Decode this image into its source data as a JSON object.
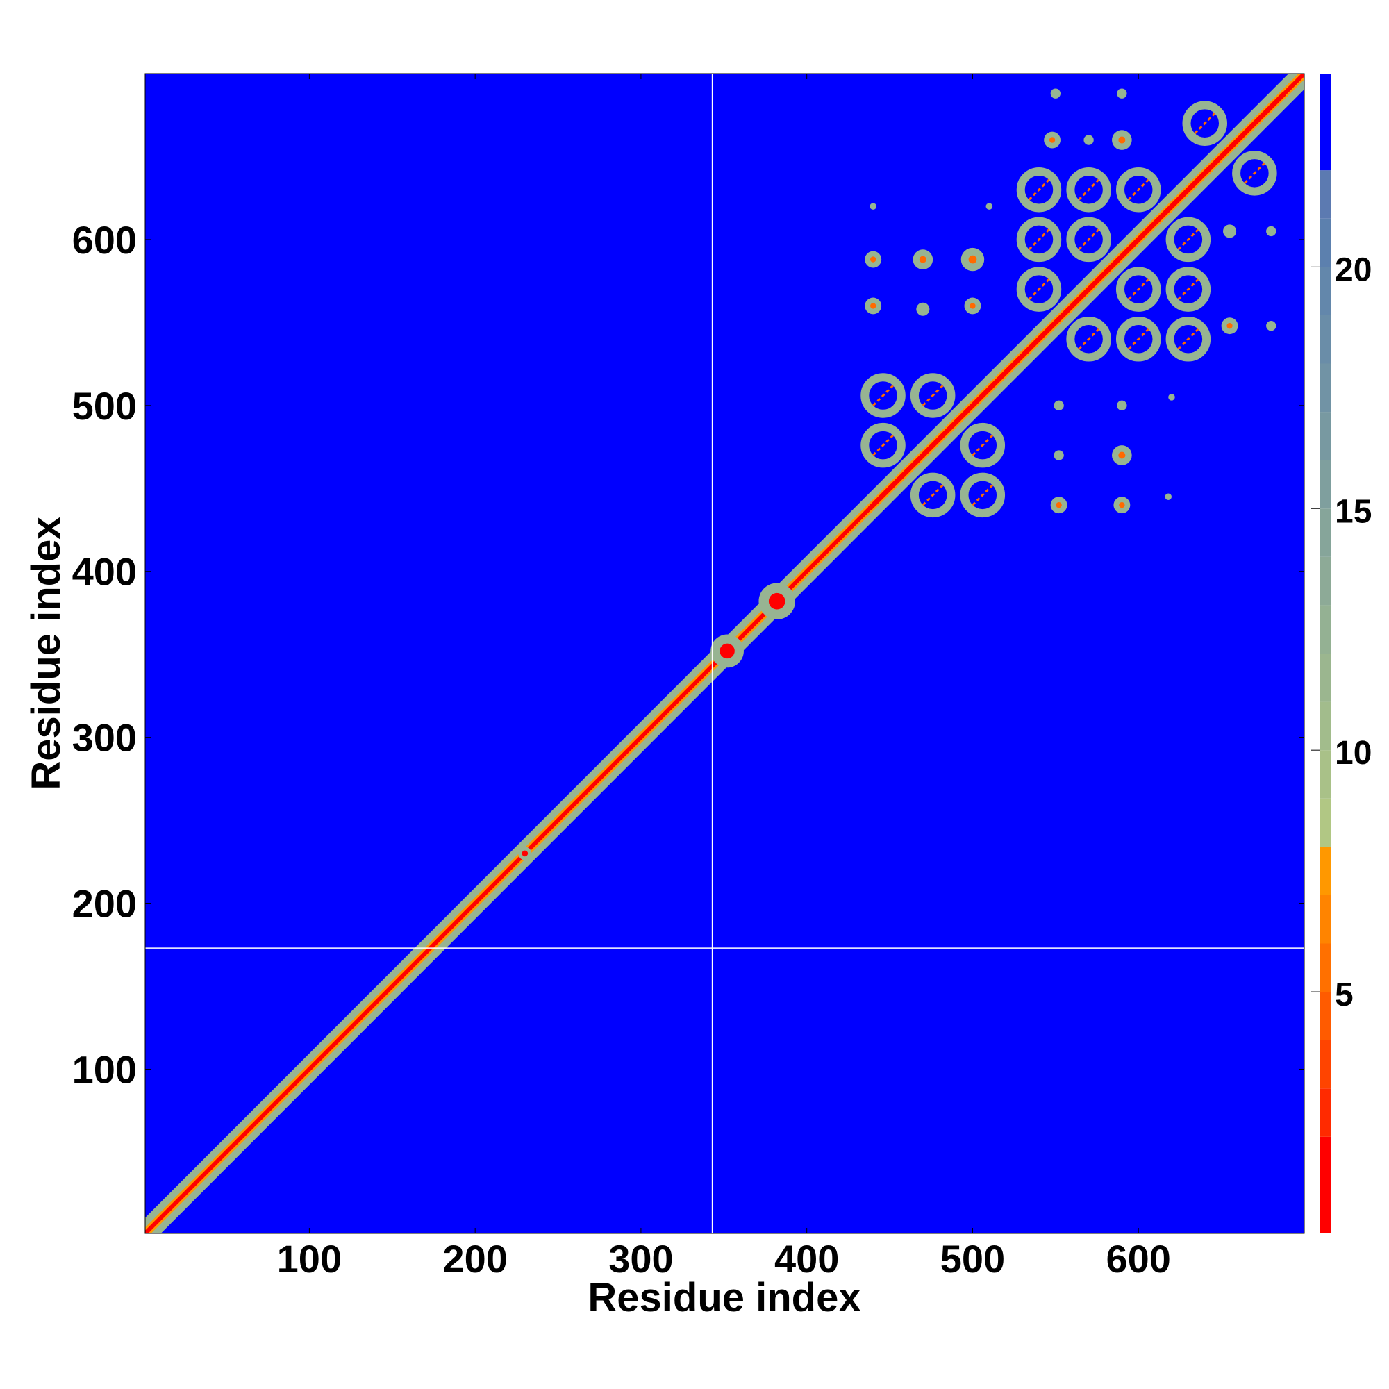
{
  "chart_data": {
    "type": "heatmap",
    "title": "",
    "xlabel": "Residue index",
    "ylabel": "Residue index",
    "xlim": [
      1,
      700
    ],
    "ylim": [
      1,
      700
    ],
    "x_ticks": [
      "100",
      "200",
      "300",
      "400",
      "500",
      "600"
    ],
    "y_ticks": [
      "100",
      "200",
      "300",
      "400",
      "500",
      "600"
    ],
    "colorbar": {
      "range": [
        0,
        24
      ],
      "ticks": [
        "5",
        "10",
        "15",
        "20"
      ],
      "levels": [
        {
          "to": 2,
          "color": "#ff0000"
        },
        {
          "to": 3,
          "color": "#ff2a00"
        },
        {
          "to": 4,
          "color": "#ff4400"
        },
        {
          "to": 5,
          "color": "#ff5b00"
        },
        {
          "to": 6,
          "color": "#ff7000"
        },
        {
          "to": 7,
          "color": "#ff8400"
        },
        {
          "to": 8,
          "color": "#ff9800"
        },
        {
          "to": 9,
          "color": "#b1c784"
        },
        {
          "to": 10,
          "color": "#a9c188"
        },
        {
          "to": 11,
          "color": "#a2bc8c"
        },
        {
          "to": 12,
          "color": "#9bb68f"
        },
        {
          "to": 13,
          "color": "#94b193"
        },
        {
          "to": 14,
          "color": "#8daa97"
        },
        {
          "to": 15,
          "color": "#86a59a"
        },
        {
          "to": 16,
          "color": "#7f9f9e"
        },
        {
          "to": 17,
          "color": "#7899a1"
        },
        {
          "to": 18,
          "color": "#7193a5"
        },
        {
          "to": 19,
          "color": "#6a8da8"
        },
        {
          "to": 20,
          "color": "#6387ab"
        },
        {
          "to": 21,
          "color": "#5c80ae"
        },
        {
          "to": 22,
          "color": "#5c7ab1"
        },
        {
          "to": 24,
          "color": "#0000ff"
        }
      ]
    },
    "background_color": "#0000ff",
    "diagonal_color": "#ff0000",
    "contact_color": "#97b492",
    "separator_lines": {
      "x": 343,
      "y": 173,
      "color": "#ffffff"
    },
    "diagonal_bulges": [
      {
        "center": 352,
        "radius": 10
      },
      {
        "center": 382,
        "radius": 11
      },
      {
        "center": 230,
        "radius": 4
      }
    ],
    "domain_blocks": [
      {
        "x": [
          438,
          535
        ],
        "y": [
          438,
          535
        ]
      },
      {
        "x": [
          532,
          645
        ],
        "y": [
          532,
          645
        ]
      },
      {
        "x": [
          632,
          688
        ],
        "y": [
          632,
          688
        ]
      }
    ],
    "contact_blobs": [
      {
        "x": 552,
        "y": 440,
        "r": 5
      },
      {
        "x": 590,
        "y": 440,
        "r": 5
      },
      {
        "x": 552,
        "y": 470,
        "r": 3
      },
      {
        "x": 590,
        "y": 470,
        "r": 6
      },
      {
        "x": 552,
        "y": 500,
        "r": 3
      },
      {
        "x": 590,
        "y": 500,
        "r": 3
      },
      {
        "x": 620,
        "y": 505,
        "r": 2
      },
      {
        "x": 618,
        "y": 445,
        "r": 2
      },
      {
        "x": 440,
        "y": 588,
        "r": 5
      },
      {
        "x": 470,
        "y": 588,
        "r": 6
      },
      {
        "x": 500,
        "y": 588,
        "r": 7
      },
      {
        "x": 440,
        "y": 560,
        "r": 5
      },
      {
        "x": 470,
        "y": 558,
        "r": 4
      },
      {
        "x": 500,
        "y": 560,
        "r": 5
      },
      {
        "x": 440,
        "y": 620,
        "r": 2
      },
      {
        "x": 510,
        "y": 620,
        "r": 2
      },
      {
        "x": 548,
        "y": 660,
        "r": 5
      },
      {
        "x": 590,
        "y": 660,
        "r": 6
      },
      {
        "x": 570,
        "y": 660,
        "r": 3
      },
      {
        "x": 550,
        "y": 688,
        "r": 3
      },
      {
        "x": 590,
        "y": 688,
        "r": 3
      },
      {
        "x": 655,
        "y": 548,
        "r": 5
      },
      {
        "x": 680,
        "y": 548,
        "r": 3
      },
      {
        "x": 655,
        "y": 605,
        "r": 4
      },
      {
        "x": 680,
        "y": 605,
        "r": 3
      }
    ]
  }
}
